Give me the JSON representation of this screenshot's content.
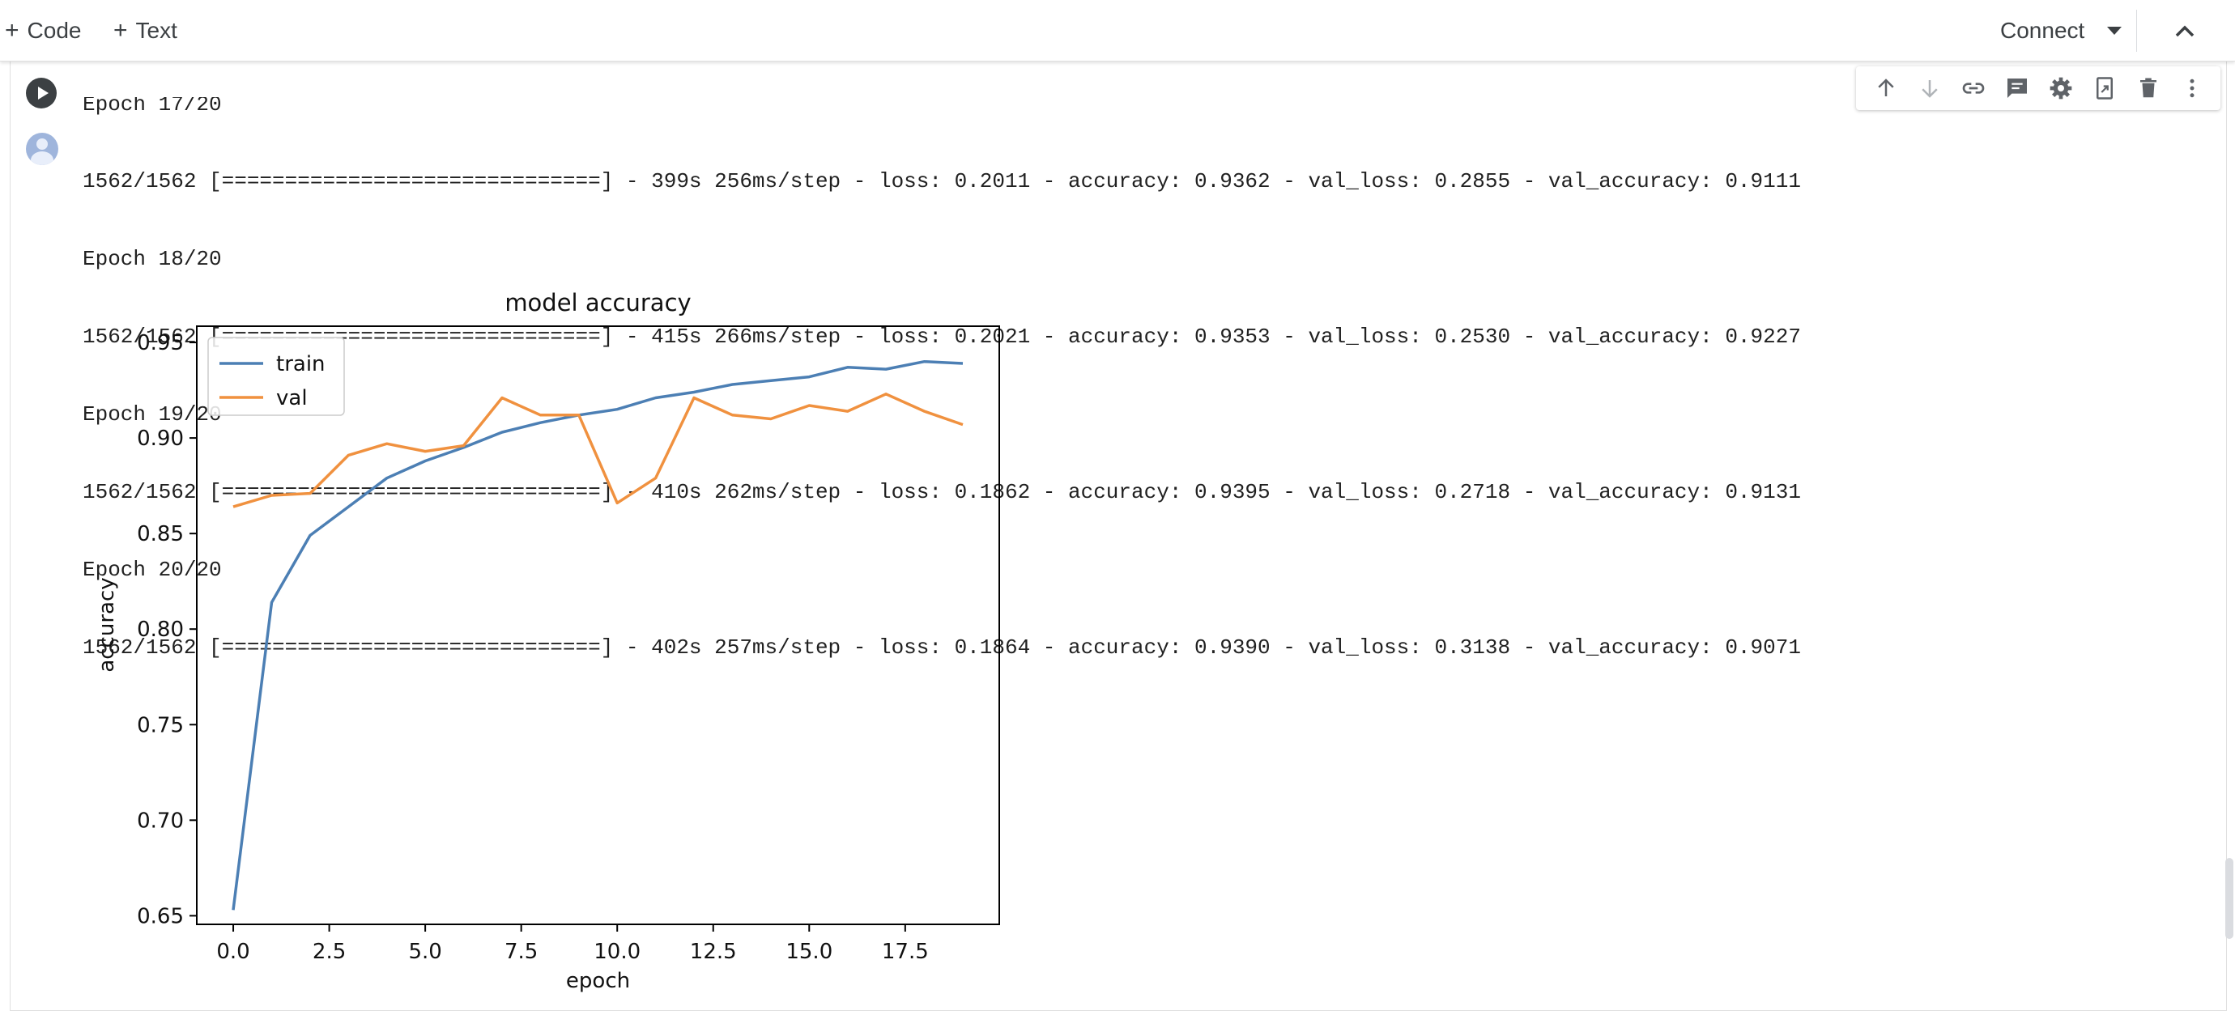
{
  "toolbar": {
    "code_label": "Code",
    "text_label": "Text",
    "connect_label": "Connect"
  },
  "cell_toolbar_icons": [
    "move-up-icon",
    "move-down-icon",
    "link-icon",
    "comment-icon",
    "settings-icon",
    "mirror-cell-icon",
    "delete-icon",
    "more-icon"
  ],
  "output": {
    "lines": [
      "Epoch 17/20",
      "1562/1562 [==============================] - 399s 256ms/step - loss: 0.2011 - accuracy: 0.9362 - val_loss: 0.2855 - val_accuracy: 0.9111",
      "Epoch 18/20",
      "1562/1562 [==============================] - 415s 266ms/step - loss: 0.2021 - accuracy: 0.9353 - val_loss: 0.2530 - val_accuracy: 0.9227",
      "Epoch 19/20",
      "1562/1562 [==============================] - 410s 262ms/step - loss: 0.1862 - accuracy: 0.9395 - val_loss: 0.2718 - val_accuracy: 0.9131",
      "Epoch 20/20",
      "1562/1562 [==============================] - 402s 257ms/step - loss: 0.1864 - accuracy: 0.9390 - val_loss: 0.3138 - val_accuracy: 0.9071"
    ]
  },
  "chart_data": {
    "type": "line",
    "title": "model accuracy",
    "xlabel": "epoch",
    "ylabel": "accuracy",
    "x": [
      0,
      1,
      2,
      3,
      4,
      5,
      6,
      7,
      8,
      9,
      10,
      11,
      12,
      13,
      14,
      15,
      16,
      17,
      18,
      19
    ],
    "xlim": [
      -0.95,
      19.95
    ],
    "ylim": [
      0.6455,
      0.9585
    ],
    "xticks": [
      0.0,
      2.5,
      5.0,
      7.5,
      10.0,
      12.5,
      15.0,
      17.5
    ],
    "xtick_labels": [
      "0.0",
      "2.5",
      "5.0",
      "7.5",
      "10.0",
      "12.5",
      "15.0",
      "17.5"
    ],
    "yticks": [
      0.65,
      0.7,
      0.75,
      0.8,
      0.85,
      0.9,
      0.95
    ],
    "ytick_labels": [
      "0.65",
      "0.70",
      "0.75",
      "0.80",
      "0.85",
      "0.90",
      "0.95"
    ],
    "legend_position": "upper left",
    "series": [
      {
        "name": "train",
        "color": "#4c7fb4",
        "values": [
          0.653,
          0.814,
          0.849,
          0.864,
          0.879,
          0.888,
          0.895,
          0.903,
          0.908,
          0.912,
          0.915,
          0.921,
          0.924,
          0.928,
          0.93,
          0.932,
          0.937,
          0.936,
          0.94,
          0.939
        ]
      },
      {
        "name": "val",
        "color": "#f0913f",
        "values": [
          0.864,
          0.87,
          0.871,
          0.891,
          0.897,
          0.893,
          0.896,
          0.921,
          0.912,
          0.912,
          0.866,
          0.879,
          0.921,
          0.912,
          0.91,
          0.917,
          0.914,
          0.923,
          0.914,
          0.907
        ]
      }
    ]
  }
}
